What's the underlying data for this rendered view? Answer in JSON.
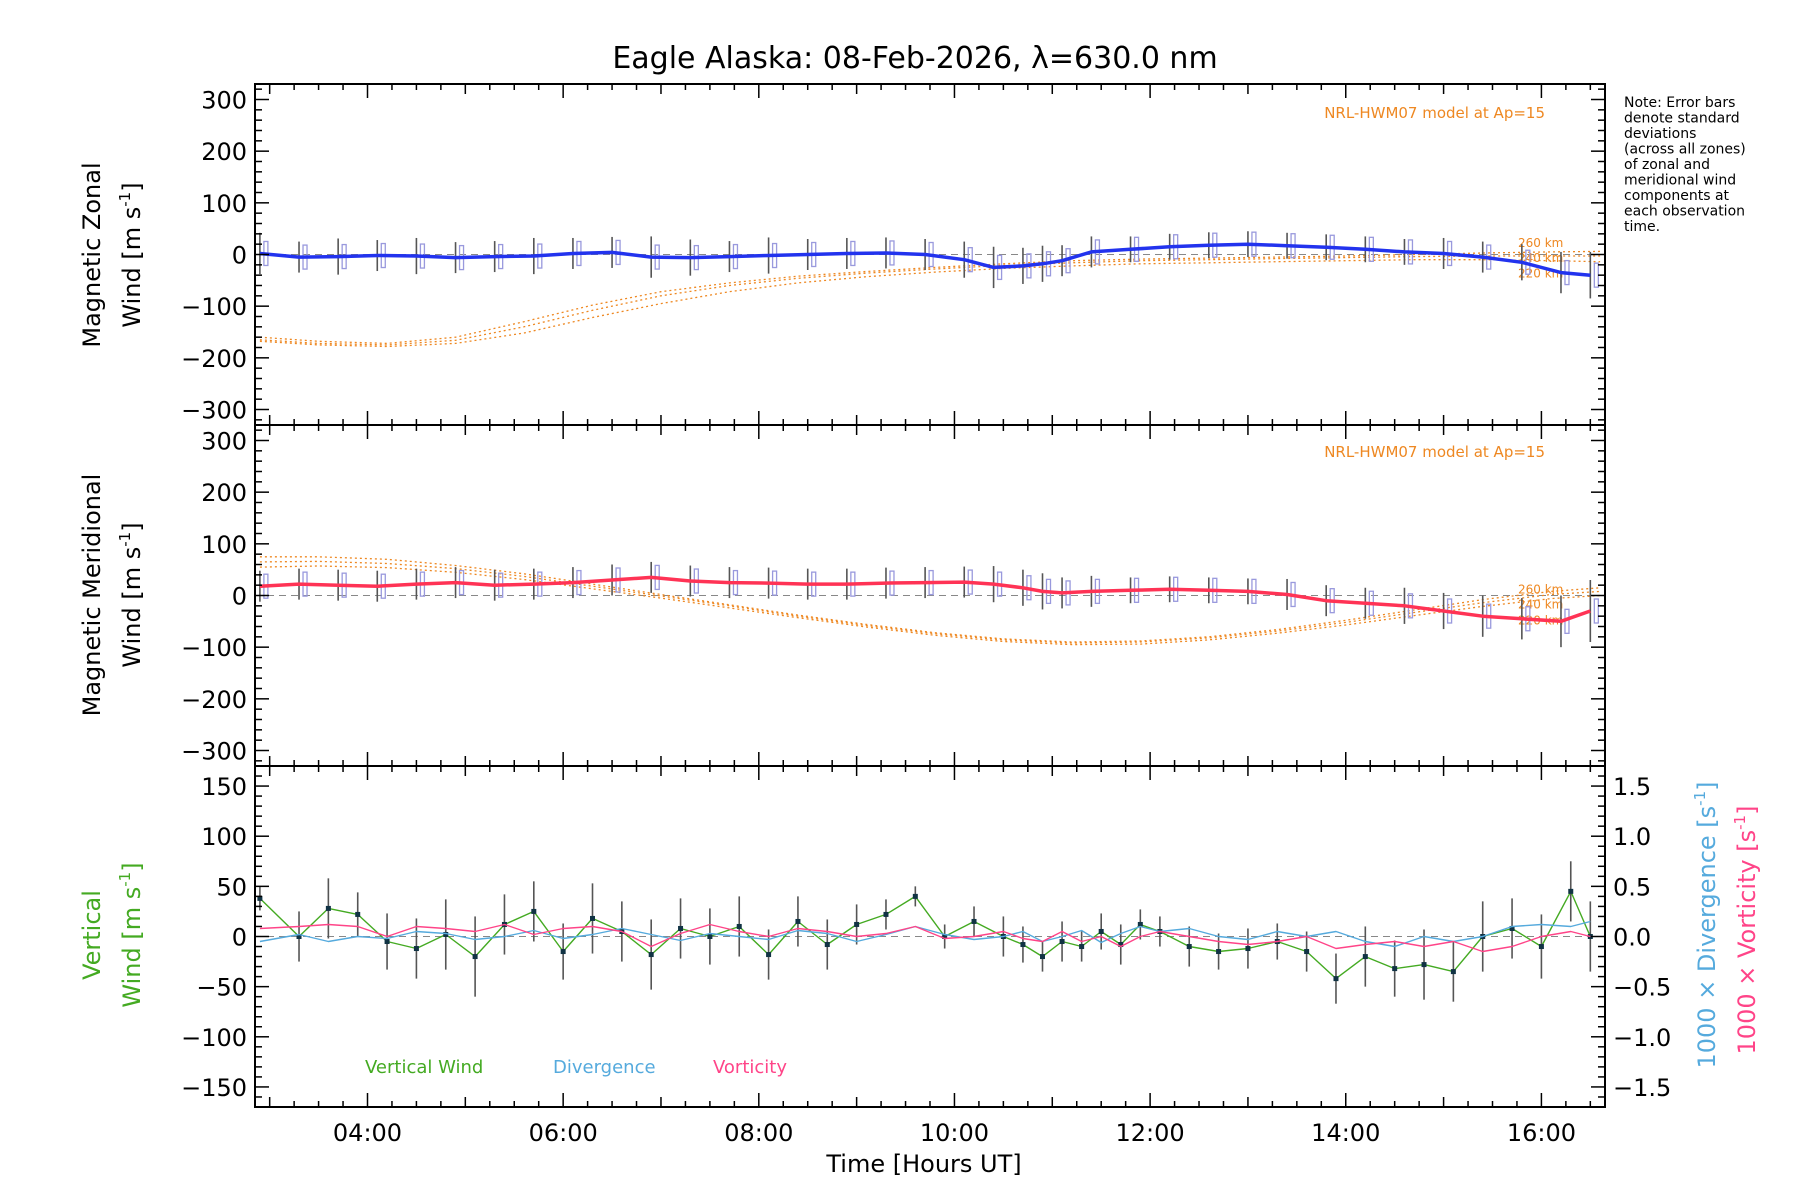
{
  "title": "Eagle Alaska: 08-Feb-2026, λ=630.0 nm",
  "note_lines": [
    "Note: Error bars",
    "denote standard",
    "deviations",
    "(across all zones)",
    "of zonal and",
    "meridional wind",
    "components at",
    "each observation",
    "time."
  ],
  "colors": {
    "zonal": "#2233ee",
    "meridional": "#ff3355",
    "model": "#ee8822",
    "vertical": "#44aa22",
    "divergence": "#55aadd",
    "vorticity": "#ff4488",
    "zone_points": "#9999dd",
    "axis": "#000000"
  },
  "chart_data": [
    {
      "type": "line",
      "name": "zonal",
      "ylabel_line1": "Magnetic Zonal",
      "ylabel_line2": "Wind [m s",
      "ylabel_sup": "-1",
      "ylabel_close": "]",
      "ylim": [
        -330,
        330
      ],
      "yticks": [
        300,
        200,
        100,
        0,
        -100,
        -200,
        -300
      ],
      "ytick_labels": [
        "300",
        "200",
        "100",
        "0",
        "−100",
        "−200",
        "−300"
      ],
      "xlim": [
        2.85,
        16.65
      ],
      "model_label": "NRL-HWM07 model at Ap=15",
      "model_heights": [
        "260 km",
        "240 km",
        "220 km"
      ],
      "x": [
        2.9,
        3.3,
        3.7,
        4.1,
        4.5,
        4.9,
        5.3,
        5.7,
        6.1,
        6.5,
        6.9,
        7.3,
        7.7,
        8.1,
        8.5,
        8.9,
        9.3,
        9.7,
        10.1,
        10.4,
        10.7,
        10.9,
        11.1,
        11.4,
        11.8,
        12.2,
        12.6,
        13.0,
        13.4,
        13.8,
        14.2,
        14.6,
        15.0,
        15.4,
        15.8,
        16.2,
        16.5
      ],
      "series": [
        {
          "name": "Zonal wind",
          "values": [
            2,
            -5,
            -4,
            -2,
            -3,
            -6,
            -4,
            -3,
            2,
            4,
            -5,
            -6,
            -4,
            -2,
            0,
            2,
            3,
            0,
            -10,
            -25,
            -22,
            -18,
            -12,
            5,
            10,
            15,
            18,
            20,
            17,
            14,
            10,
            5,
            2,
            -5,
            -15,
            -35,
            -40
          ]
        }
      ],
      "errors": [
        40,
        30,
        35,
        30,
        35,
        30,
        30,
        35,
        30,
        30,
        40,
        35,
        30,
        35,
        30,
        30,
        30,
        30,
        35,
        40,
        35,
        35,
        30,
        30,
        25,
        25,
        25,
        25,
        25,
        25,
        25,
        25,
        30,
        30,
        35,
        40,
        45
      ],
      "model": [
        {
          "height": "260 km",
          "x": [
            2.9,
            3.5,
            4.2,
            4.9,
            5.6,
            6.3,
            7.0,
            7.7,
            8.4,
            9.1,
            9.8,
            10.5,
            11.2,
            11.9,
            12.6,
            13.3,
            14.0,
            14.7,
            15.4,
            16.1,
            16.6
          ],
          "values": [
            -160,
            -168,
            -172,
            -160,
            -130,
            -98,
            -72,
            -55,
            -42,
            -33,
            -25,
            -18,
            -12,
            -9,
            -7,
            -5,
            -3,
            0,
            3,
            5,
            6
          ]
        },
        {
          "height": "240 km",
          "x": [
            2.9,
            3.5,
            4.2,
            4.9,
            5.6,
            6.3,
            7.0,
            7.7,
            8.4,
            9.1,
            9.8,
            10.5,
            11.2,
            11.9,
            12.6,
            13.3,
            14.0,
            14.7,
            15.4,
            16.1,
            16.6
          ],
          "values": [
            -165,
            -172,
            -175,
            -166,
            -140,
            -108,
            -80,
            -60,
            -46,
            -36,
            -28,
            -21,
            -16,
            -12,
            -10,
            -8,
            -6,
            -4,
            -3,
            -3,
            -3
          ]
        },
        {
          "height": "220 km",
          "x": [
            2.9,
            3.5,
            4.2,
            4.9,
            5.6,
            6.3,
            7.0,
            7.7,
            8.4,
            9.1,
            9.8,
            10.5,
            11.2,
            11.9,
            12.6,
            13.3,
            14.0,
            14.7,
            15.4,
            16.1,
            16.6
          ],
          "values": [
            -168,
            -175,
            -178,
            -172,
            -152,
            -122,
            -95,
            -72,
            -55,
            -43,
            -34,
            -27,
            -22,
            -18,
            -16,
            -14,
            -12,
            -10,
            -10,
            -12,
            -14
          ]
        }
      ]
    },
    {
      "type": "line",
      "name": "meridional",
      "ylabel_line1": "Magnetic Meridional",
      "ylabel_line2": "Wind [m s",
      "ylabel_sup": "-1",
      "ylabel_close": "]",
      "ylim": [
        -330,
        330
      ],
      "yticks": [
        300,
        200,
        100,
        0,
        -100,
        -200,
        -300
      ],
      "ytick_labels": [
        "300",
        "200",
        "100",
        "0",
        "−100",
        "−200",
        "−300"
      ],
      "xlim": [
        2.85,
        16.65
      ],
      "model_label": "NRL-HWM07 model at Ap=15",
      "model_heights": [
        "260 km",
        "240 km",
        "220 km"
      ],
      "x": [
        2.9,
        3.3,
        3.7,
        4.1,
        4.5,
        4.9,
        5.3,
        5.7,
        6.1,
        6.5,
        6.9,
        7.3,
        7.7,
        8.1,
        8.5,
        8.9,
        9.3,
        9.7,
        10.1,
        10.4,
        10.7,
        10.9,
        11.1,
        11.4,
        11.8,
        12.2,
        12.6,
        13.0,
        13.4,
        13.8,
        14.2,
        14.6,
        15.0,
        15.4,
        15.8,
        16.2,
        16.5
      ],
      "series": [
        {
          "name": "Meridional wind",
          "values": [
            18,
            22,
            20,
            18,
            22,
            25,
            20,
            22,
            25,
            30,
            35,
            28,
            25,
            24,
            22,
            22,
            24,
            25,
            26,
            22,
            15,
            8,
            5,
            8,
            10,
            12,
            10,
            8,
            2,
            -10,
            -15,
            -20,
            -30,
            -40,
            -45,
            -50,
            -30
          ]
        }
      ],
      "errors": [
        30,
        30,
        30,
        30,
        30,
        30,
        30,
        30,
        30,
        30,
        30,
        30,
        30,
        30,
        30,
        30,
        30,
        30,
        30,
        35,
        35,
        35,
        30,
        30,
        25,
        25,
        25,
        25,
        30,
        30,
        30,
        35,
        35,
        40,
        40,
        50,
        60
      ],
      "model": [
        {
          "height": "260 km",
          "x": [
            2.9,
            3.5,
            4.2,
            4.9,
            5.6,
            6.3,
            7.0,
            7.7,
            8.4,
            9.1,
            9.8,
            10.5,
            11.2,
            11.9,
            12.6,
            13.3,
            14.0,
            14.7,
            15.4,
            16.1,
            16.6
          ],
          "values": [
            75,
            75,
            70,
            58,
            42,
            22,
            2,
            -18,
            -38,
            -56,
            -72,
            -84,
            -90,
            -88,
            -80,
            -66,
            -48,
            -28,
            -8,
            8,
            15
          ]
        },
        {
          "height": "240 km",
          "x": [
            2.9,
            3.5,
            4.2,
            4.9,
            5.6,
            6.3,
            7.0,
            7.7,
            8.4,
            9.1,
            9.8,
            10.5,
            11.2,
            11.9,
            12.6,
            13.3,
            14.0,
            14.7,
            15.4,
            16.1,
            16.6
          ],
          "values": [
            65,
            66,
            62,
            52,
            37,
            18,
            -1,
            -20,
            -40,
            -58,
            -74,
            -86,
            -92,
            -90,
            -82,
            -69,
            -52,
            -33,
            -14,
            2,
            8
          ]
        },
        {
          "height": "220 km",
          "x": [
            2.9,
            3.5,
            4.2,
            4.9,
            5.6,
            6.3,
            7.0,
            7.7,
            8.4,
            9.1,
            9.8,
            10.5,
            11.2,
            11.9,
            12.6,
            13.3,
            14.0,
            14.7,
            15.4,
            16.1,
            16.6
          ],
          "values": [
            55,
            57,
            54,
            45,
            31,
            13,
            -5,
            -24,
            -43,
            -61,
            -77,
            -89,
            -95,
            -94,
            -86,
            -73,
            -57,
            -39,
            -21,
            -6,
            0
          ]
        }
      ]
    },
    {
      "type": "line",
      "name": "vertical",
      "ylabel_line1": "Vertical",
      "ylabel_line2": "Wind [m s",
      "ylabel_sup": "-1",
      "ylabel_close": "]",
      "ylim": [
        -170,
        170
      ],
      "yticks": [
        150,
        100,
        50,
        0,
        -50,
        -100,
        -150
      ],
      "ytick_labels": [
        "150",
        "100",
        "50",
        "0",
        "−50",
        "−100",
        "−150"
      ],
      "y2lim": [
        -1.7,
        1.7
      ],
      "y2ticks": [
        1.5,
        1.0,
        0.5,
        0.0,
        -0.5,
        -1.0,
        -1.5
      ],
      "y2tick_labels": [
        "1.5",
        "1.0",
        "0.5",
        "0.0",
        "−0.5",
        "−1.0",
        "−1.5"
      ],
      "y2label_a": "1000 × Divergence [s",
      "y2label_b": "1000 × Vorticity [s",
      "y2label_sup": "-1",
      "y2label_close": "]",
      "xlim": [
        2.85,
        16.65
      ],
      "xticks": [
        4,
        6,
        8,
        10,
        12,
        14,
        16
      ],
      "xtick_labels": [
        "04:00",
        "06:00",
        "08:00",
        "10:00",
        "12:00",
        "14:00",
        "16:00"
      ],
      "xlabel": "Time [Hours UT]",
      "legend": [
        "Vertical Wind",
        "Divergence",
        "Vorticity"
      ],
      "x": [
        2.9,
        3.3,
        3.6,
        3.9,
        4.2,
        4.5,
        4.8,
        5.1,
        5.4,
        5.7,
        6.0,
        6.3,
        6.6,
        6.9,
        7.2,
        7.5,
        7.8,
        8.1,
        8.4,
        8.7,
        9.0,
        9.3,
        9.6,
        9.9,
        10.2,
        10.5,
        10.7,
        10.9,
        11.1,
        11.3,
        11.5,
        11.7,
        11.9,
        12.1,
        12.4,
        12.7,
        13.0,
        13.3,
        13.6,
        13.9,
        14.2,
        14.5,
        14.8,
        15.1,
        15.4,
        15.7,
        16.0,
        16.3,
        16.5
      ],
      "series": [
        {
          "name": "Vertical Wind",
          "axis": "left",
          "values": [
            38,
            0,
            28,
            22,
            -5,
            -12,
            2,
            -20,
            12,
            25,
            -15,
            18,
            5,
            -18,
            8,
            0,
            10,
            -18,
            15,
            -8,
            12,
            22,
            40,
            0,
            15,
            0,
            -8,
            -20,
            -5,
            -10,
            5,
            -8,
            12,
            5,
            -10,
            -15,
            -12,
            -5,
            -15,
            -42,
            -20,
            -32,
            -28,
            -35,
            0,
            8,
            -10,
            45,
            0
          ]
        },
        {
          "name": "Divergence",
          "axis": "right",
          "values": [
            -0.05,
            0.02,
            -0.05,
            0.0,
            -0.02,
            0.05,
            0.03,
            -0.03,
            0.0,
            0.06,
            -0.02,
            0.02,
            0.08,
            0.02,
            -0.04,
            0.03,
            0.0,
            -0.03,
            0.06,
            0.03,
            -0.05,
            0.02,
            0.1,
            0.02,
            -0.03,
            0.0,
            0.05,
            -0.05,
            0.0,
            0.06,
            -0.06,
            0.03,
            0.1,
            0.05,
            0.08,
            0.0,
            -0.03,
            0.05,
            0.0,
            0.05,
            -0.05,
            -0.1,
            0.0,
            -0.05,
            0.0,
            0.1,
            0.12,
            0.1,
            0.15
          ]
        },
        {
          "name": "Vorticity",
          "axis": "right",
          "values": [
            0.08,
            0.1,
            0.12,
            0.1,
            0.0,
            0.1,
            0.08,
            0.05,
            0.12,
            0.02,
            0.08,
            0.1,
            0.05,
            -0.1,
            0.03,
            0.12,
            0.05,
            0.0,
            0.08,
            0.05,
            0.0,
            0.03,
            0.1,
            -0.02,
            0.0,
            0.05,
            -0.02,
            -0.05,
            0.05,
            -0.05,
            0.0,
            -0.1,
            0.0,
            0.05,
            0.0,
            -0.05,
            -0.08,
            -0.05,
            0.0,
            -0.12,
            -0.08,
            -0.05,
            -0.1,
            -0.05,
            -0.15,
            -0.1,
            0.0,
            0.05,
            0.0
          ]
        }
      ],
      "errors": [
        12,
        25,
        30,
        22,
        28,
        30,
        35,
        40,
        30,
        30,
        28,
        35,
        30,
        35,
        30,
        28,
        30,
        25,
        25,
        25,
        20,
        15,
        10,
        12,
        15,
        20,
        18,
        15,
        20,
        15,
        18,
        20,
        15,
        15,
        20,
        18,
        20,
        18,
        20,
        25,
        30,
        28,
        35,
        30,
        35,
        30,
        32,
        30,
        35
      ]
    }
  ]
}
